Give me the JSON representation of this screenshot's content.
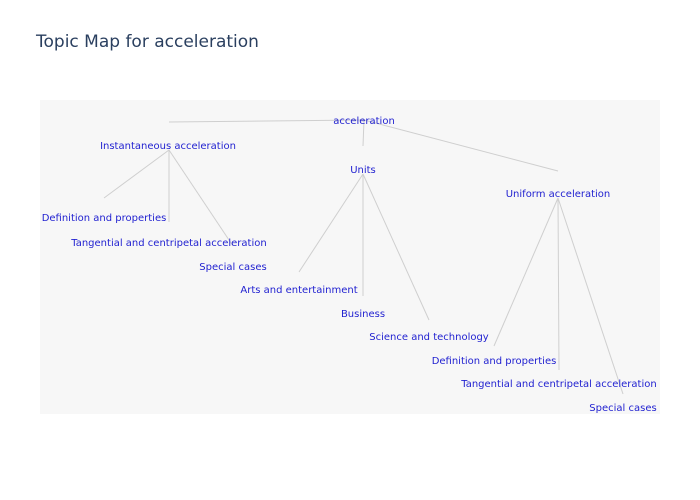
{
  "title": "Topic Map for acceleration",
  "chart_data": {
    "type": "tree",
    "root": "acceleration",
    "nodes": [
      {
        "id": "root",
        "label": "acceleration",
        "parent": null
      },
      {
        "id": "inst",
        "label": "Instantaneous acceleration",
        "parent": "root"
      },
      {
        "id": "units",
        "label": "Units",
        "parent": "root"
      },
      {
        "id": "unif",
        "label": "Uniform acceleration",
        "parent": "root"
      },
      {
        "id": "inst-def",
        "label": "Definition and properties",
        "parent": "inst"
      },
      {
        "id": "inst-tan",
        "label": "Tangential and centripetal acceleration",
        "parent": "inst"
      },
      {
        "id": "inst-spec",
        "label": "Special cases",
        "parent": "inst"
      },
      {
        "id": "units-arts",
        "label": "Arts and entertainment",
        "parent": "units"
      },
      {
        "id": "units-bus",
        "label": "Business",
        "parent": "units"
      },
      {
        "id": "units-sci",
        "label": "Science and technology",
        "parent": "units"
      },
      {
        "id": "unif-def",
        "label": "Definition and properties",
        "parent": "unif"
      },
      {
        "id": "unif-tan",
        "label": "Tangential and centripetal acceleration",
        "parent": "unif"
      },
      {
        "id": "unif-spec",
        "label": "Special cases",
        "parent": "unif"
      }
    ]
  }
}
